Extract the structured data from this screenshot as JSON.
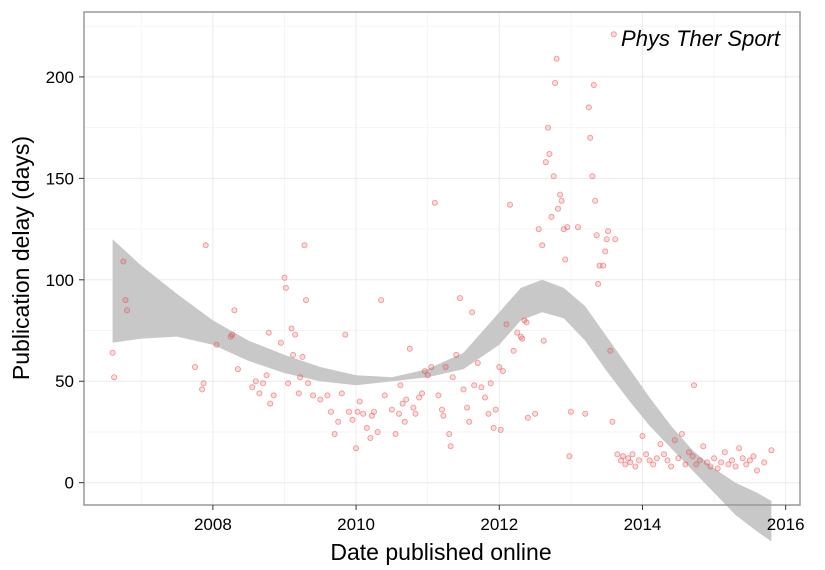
{
  "chart_data": {
    "type": "scatter",
    "annotation": "Phys Ther Sport",
    "xlabel": "Date published online",
    "ylabel": "Publication delay (days)",
    "xlim": [
      2006.2,
      2016.2
    ],
    "ylim": [
      -11,
      232
    ],
    "x_ticks": [
      2008,
      2010,
      2012,
      2014,
      2016
    ],
    "y_ticks": [
      0,
      50,
      100,
      150,
      200
    ],
    "x_tick_labels": [
      "2008",
      "2010",
      "2012",
      "2014",
      "2016"
    ],
    "y_tick_labels": [
      "0",
      "50",
      "100",
      "150",
      "200"
    ],
    "grid": true,
    "legend": "none",
    "colors": {
      "point": "#e8474a",
      "band": "#c8c8c8",
      "panel_border": "#999999",
      "grid_major": "#ebebeb",
      "grid_minor": "#f5f5f5"
    },
    "smooth_band": {
      "x": [
        2006.6,
        2007.0,
        2007.5,
        2008.0,
        2008.5,
        2009.0,
        2009.5,
        2010.0,
        2010.5,
        2011.0,
        2011.5,
        2012.0,
        2012.3,
        2012.6,
        2012.9,
        2013.2,
        2013.5,
        2013.8,
        2014.1,
        2014.4,
        2014.7,
        2015.0,
        2015.3,
        2015.6,
        2015.8
      ],
      "lower": [
        69,
        71,
        72,
        68,
        60,
        54,
        50,
        48,
        50,
        52,
        56,
        68,
        80,
        84,
        81,
        70,
        55,
        41,
        28,
        17,
        6,
        -5,
        -16,
        -24,
        -29
      ],
      "upper": [
        120,
        107,
        93,
        80,
        70,
        63,
        57,
        53,
        52,
        56,
        64,
        84,
        96,
        100,
        96,
        87,
        72,
        57,
        42,
        28,
        16,
        7,
        0,
        -5,
        -9
      ]
    },
    "points": [
      [
        2006.6,
        64
      ],
      [
        2006.62,
        52
      ],
      [
        2006.75,
        109
      ],
      [
        2006.78,
        90
      ],
      [
        2006.8,
        85
      ],
      [
        2007.75,
        57
      ],
      [
        2007.85,
        46
      ],
      [
        2007.87,
        49
      ],
      [
        2007.9,
        117
      ],
      [
        2008.05,
        68
      ],
      [
        2008.25,
        72
      ],
      [
        2008.27,
        73
      ],
      [
        2008.3,
        85
      ],
      [
        2008.35,
        56
      ],
      [
        2008.55,
        47
      ],
      [
        2008.6,
        50
      ],
      [
        2008.65,
        44
      ],
      [
        2008.7,
        49
      ],
      [
        2008.75,
        53
      ],
      [
        2008.78,
        74
      ],
      [
        2008.8,
        39
      ],
      [
        2008.85,
        43
      ],
      [
        2008.95,
        69
      ],
      [
        2009.0,
        101
      ],
      [
        2009.02,
        96
      ],
      [
        2009.05,
        49
      ],
      [
        2009.1,
        76
      ],
      [
        2009.12,
        63
      ],
      [
        2009.15,
        73
      ],
      [
        2009.2,
        44
      ],
      [
        2009.22,
        52
      ],
      [
        2009.25,
        62
      ],
      [
        2009.28,
        117
      ],
      [
        2009.3,
        90
      ],
      [
        2009.33,
        49
      ],
      [
        2009.4,
        43
      ],
      [
        2009.5,
        41
      ],
      [
        2009.6,
        43
      ],
      [
        2009.65,
        35
      ],
      [
        2009.7,
        24
      ],
      [
        2009.75,
        30
      ],
      [
        2009.8,
        44
      ],
      [
        2009.85,
        73
      ],
      [
        2009.9,
        35
      ],
      [
        2009.95,
        31
      ],
      [
        2010.0,
        17
      ],
      [
        2010.02,
        35
      ],
      [
        2010.05,
        40
      ],
      [
        2010.1,
        34
      ],
      [
        2010.15,
        27
      ],
      [
        2010.2,
        22
      ],
      [
        2010.22,
        33
      ],
      [
        2010.25,
        35
      ],
      [
        2010.3,
        25
      ],
      [
        2010.35,
        90
      ],
      [
        2010.4,
        43
      ],
      [
        2010.5,
        36
      ],
      [
        2010.55,
        24
      ],
      [
        2010.6,
        34
      ],
      [
        2010.62,
        48
      ],
      [
        2010.65,
        39
      ],
      [
        2010.68,
        30
      ],
      [
        2010.7,
        41
      ],
      [
        2010.75,
        66
      ],
      [
        2010.8,
        37
      ],
      [
        2010.83,
        34
      ],
      [
        2010.88,
        42
      ],
      [
        2010.92,
        44
      ],
      [
        2010.96,
        55
      ],
      [
        2011.0,
        53
      ],
      [
        2011.05,
        57
      ],
      [
        2011.1,
        138
      ],
      [
        2011.15,
        43
      ],
      [
        2011.2,
        36
      ],
      [
        2011.22,
        33
      ],
      [
        2011.25,
        57
      ],
      [
        2011.3,
        24
      ],
      [
        2011.32,
        18
      ],
      [
        2011.35,
        52
      ],
      [
        2011.4,
        63
      ],
      [
        2011.45,
        91
      ],
      [
        2011.5,
        46
      ],
      [
        2011.55,
        37
      ],
      [
        2011.58,
        30
      ],
      [
        2011.62,
        84
      ],
      [
        2011.65,
        48
      ],
      [
        2011.7,
        59
      ],
      [
        2011.75,
        47
      ],
      [
        2011.8,
        42
      ],
      [
        2011.85,
        34
      ],
      [
        2011.88,
        49
      ],
      [
        2011.92,
        27
      ],
      [
        2011.95,
        36
      ],
      [
        2012.0,
        57
      ],
      [
        2012.02,
        26
      ],
      [
        2012.05,
        55
      ],
      [
        2012.1,
        78
      ],
      [
        2012.15,
        137
      ],
      [
        2012.2,
        65
      ],
      [
        2012.25,
        74
      ],
      [
        2012.3,
        72
      ],
      [
        2012.32,
        71
      ],
      [
        2012.35,
        80
      ],
      [
        2012.38,
        79
      ],
      [
        2012.4,
        32
      ],
      [
        2012.5,
        34
      ],
      [
        2012.55,
        125
      ],
      [
        2012.6,
        117
      ],
      [
        2012.62,
        70
      ],
      [
        2012.65,
        158
      ],
      [
        2012.68,
        175
      ],
      [
        2012.7,
        162
      ],
      [
        2012.73,
        131
      ],
      [
        2012.76,
        151
      ],
      [
        2012.78,
        197
      ],
      [
        2012.8,
        209
      ],
      [
        2012.82,
        135
      ],
      [
        2012.85,
        142
      ],
      [
        2012.87,
        139
      ],
      [
        2012.9,
        125
      ],
      [
        2012.92,
        110
      ],
      [
        2012.95,
        126
      ],
      [
        2012.98,
        13
      ],
      [
        2013.0,
        35
      ],
      [
        2013.1,
        126
      ],
      [
        2013.2,
        34
      ],
      [
        2013.25,
        185
      ],
      [
        2013.27,
        170
      ],
      [
        2013.3,
        151
      ],
      [
        2013.32,
        196
      ],
      [
        2013.34,
        139
      ],
      [
        2013.36,
        122
      ],
      [
        2013.38,
        98
      ],
      [
        2013.4,
        107
      ],
      [
        2013.45,
        107
      ],
      [
        2013.48,
        114
      ],
      [
        2013.5,
        120
      ],
      [
        2013.52,
        124
      ],
      [
        2013.55,
        65
      ],
      [
        2013.58,
        30
      ],
      [
        2013.6,
        221
      ],
      [
        2013.62,
        120
      ],
      [
        2013.65,
        14
      ],
      [
        2013.7,
        11
      ],
      [
        2013.73,
        13
      ],
      [
        2013.76,
        9
      ],
      [
        2013.8,
        12
      ],
      [
        2013.83,
        10
      ],
      [
        2013.86,
        14
      ],
      [
        2013.9,
        8
      ],
      [
        2013.95,
        11
      ],
      [
        2014.0,
        23
      ],
      [
        2014.05,
        14
      ],
      [
        2014.1,
        11
      ],
      [
        2014.15,
        9
      ],
      [
        2014.2,
        12
      ],
      [
        2014.25,
        19
      ],
      [
        2014.3,
        14
      ],
      [
        2014.35,
        11
      ],
      [
        2014.4,
        8
      ],
      [
        2014.45,
        21
      ],
      [
        2014.5,
        12
      ],
      [
        2014.55,
        24
      ],
      [
        2014.6,
        9
      ],
      [
        2014.65,
        15
      ],
      [
        2014.7,
        13
      ],
      [
        2014.72,
        48
      ],
      [
        2014.75,
        9
      ],
      [
        2014.8,
        11
      ],
      [
        2014.85,
        18
      ],
      [
        2014.9,
        10
      ],
      [
        2014.95,
        8
      ],
      [
        2015.0,
        12
      ],
      [
        2015.05,
        7
      ],
      [
        2015.1,
        10
      ],
      [
        2015.15,
        15
      ],
      [
        2015.2,
        9
      ],
      [
        2015.25,
        11
      ],
      [
        2015.3,
        8
      ],
      [
        2015.35,
        17
      ],
      [
        2015.4,
        12
      ],
      [
        2015.45,
        9
      ],
      [
        2015.5,
        11
      ],
      [
        2015.55,
        13
      ],
      [
        2015.7,
        10
      ],
      [
        2015.8,
        16
      ],
      [
        2015.6,
        6
      ]
    ]
  }
}
